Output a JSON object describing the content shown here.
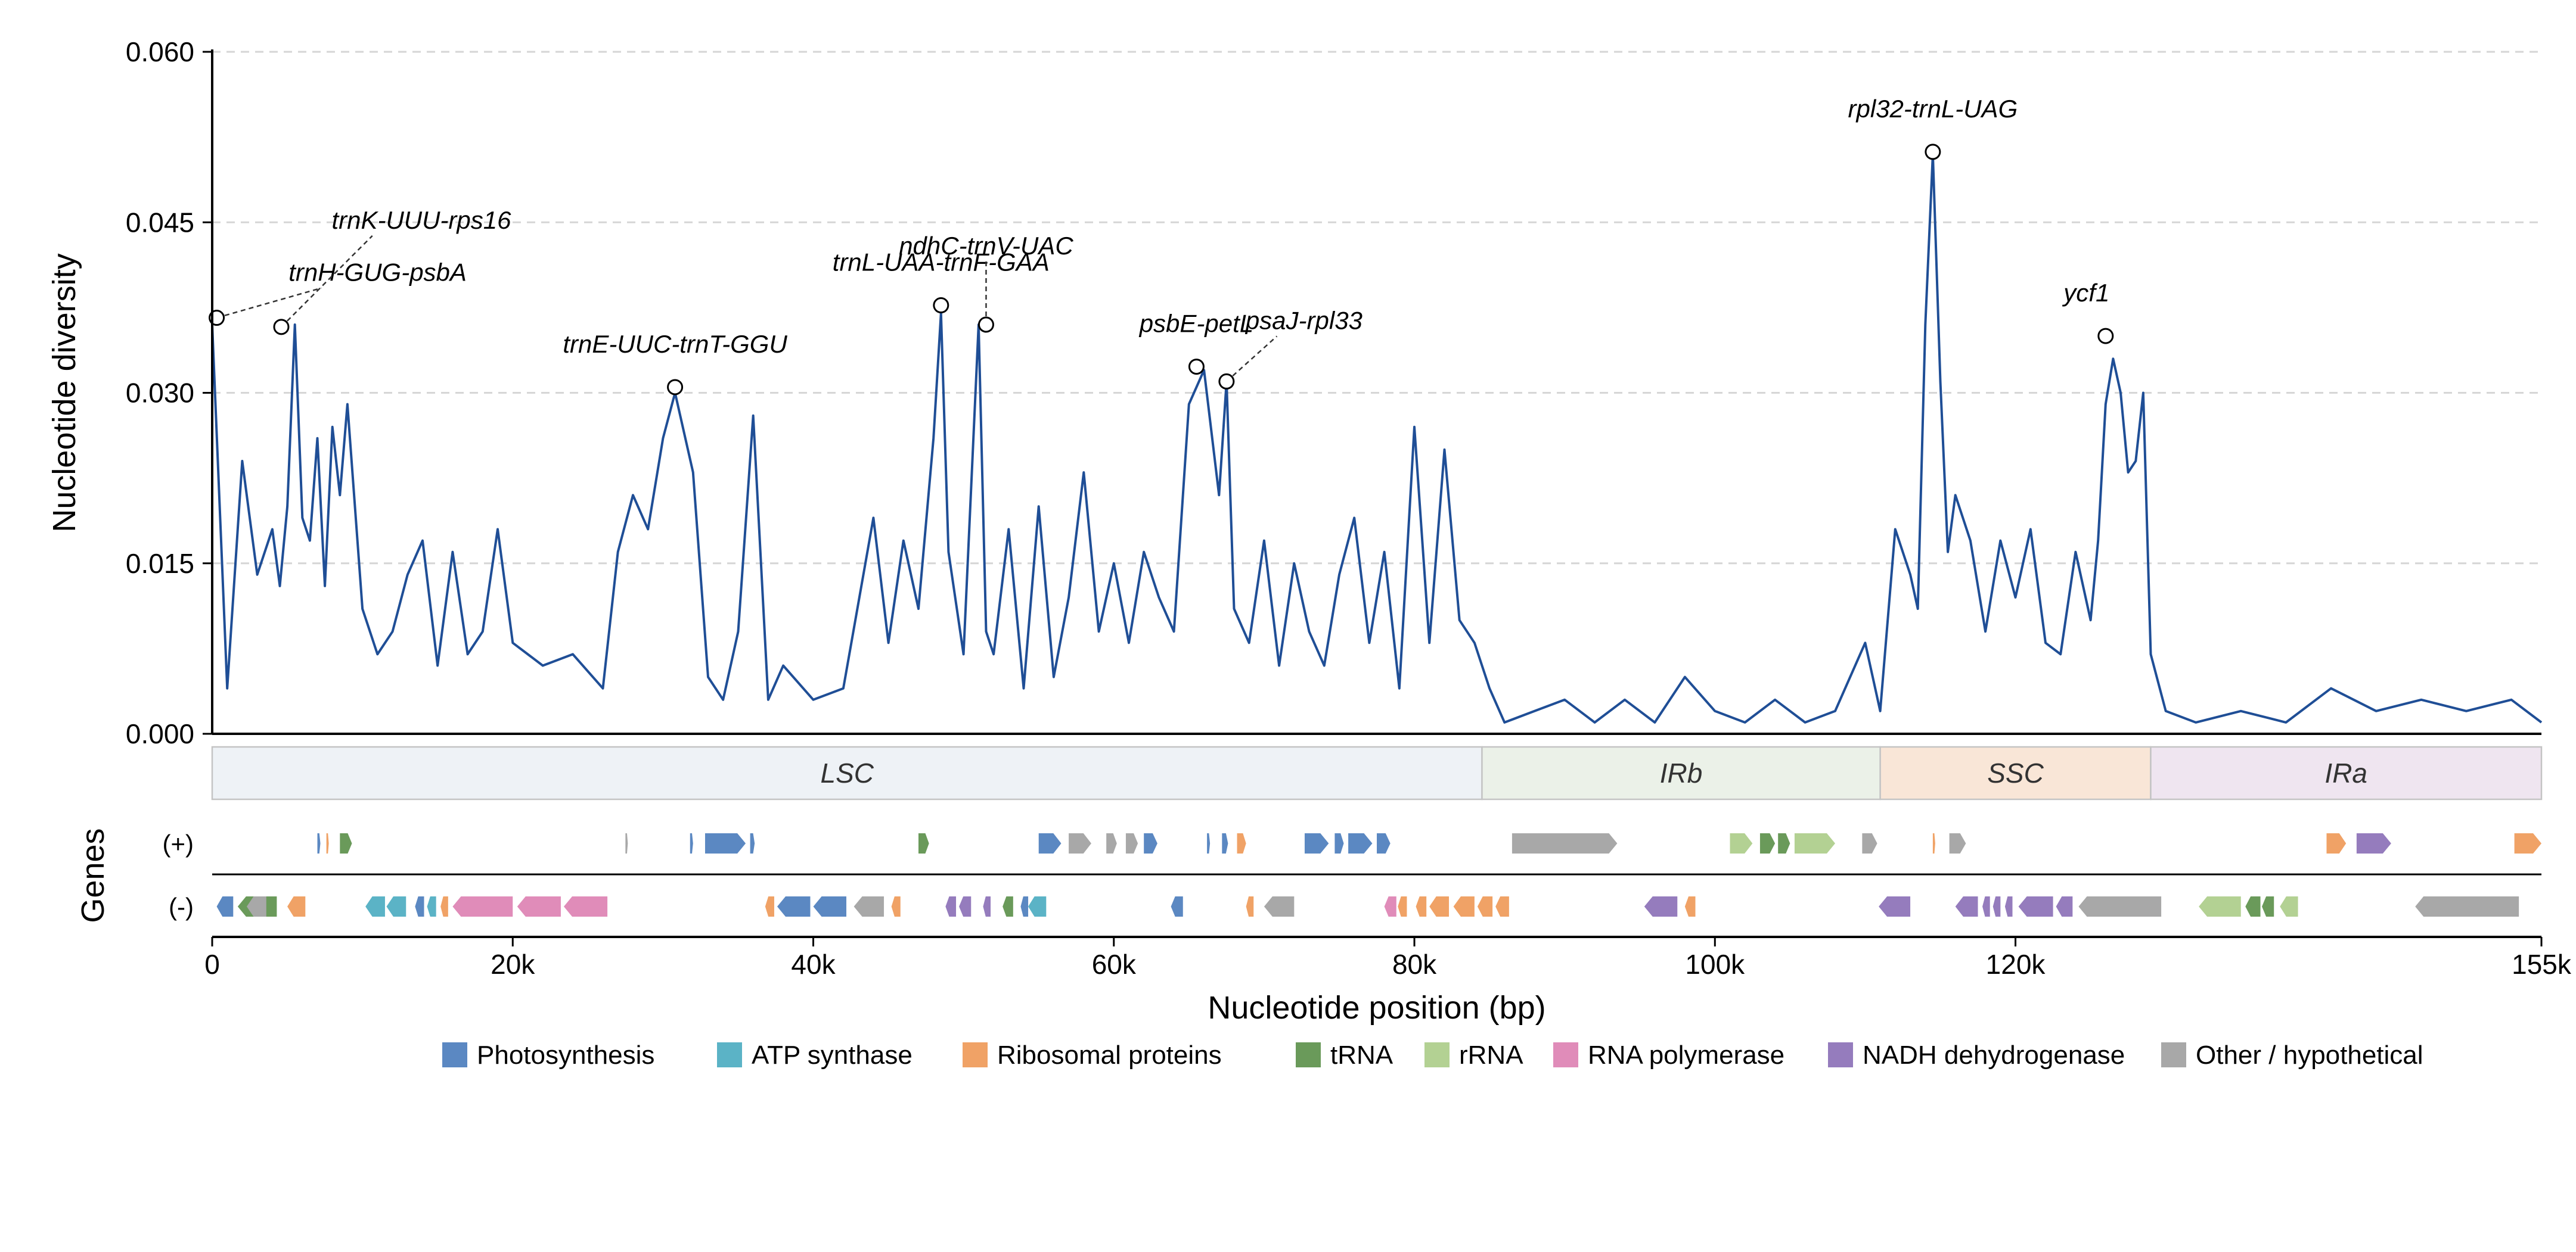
{
  "chart_data": {
    "type": "line",
    "xlabel": "Nucleotide position (bp)",
    "ylabel": "Nucleotide diversity",
    "genes_label": "Genes",
    "xlim": [
      0,
      155000
    ],
    "ylim": [
      0,
      0.06
    ],
    "x_ticks": [
      0,
      20000,
      40000,
      60000,
      80000,
      100000,
      120000,
      155000
    ],
    "x_tick_labels": [
      "0",
      "20k",
      "40k",
      "60k",
      "80k",
      "100k",
      "120k",
      "155k"
    ],
    "y_ticks": [
      0,
      0.015,
      0.03,
      0.045,
      0.06
    ],
    "y_tick_labels": [
      "0.000",
      "0.015",
      "0.030",
      "0.045",
      "0.060"
    ],
    "grid": "horizontal dashed",
    "line_color": "#1f4e96",
    "series": [
      {
        "x": [
          0,
          1000,
          2000,
          3000,
          4000,
          4500,
          5000,
          5500,
          6000,
          6500,
          7000,
          7500,
          8000,
          8500,
          9000,
          10000,
          11000,
          12000,
          13000,
          14000,
          15000,
          16000,
          17000,
          18000,
          19000,
          20000,
          22000,
          24000,
          26000,
          27000,
          28000,
          29000,
          30000,
          30800,
          32000,
          33000,
          34000,
          35000,
          36000,
          37000,
          38000,
          40000,
          42000,
          44000,
          45000,
          46000,
          47000,
          48000,
          48500,
          49000,
          50000,
          51000,
          51500,
          52000,
          53000,
          54000,
          55000,
          56000,
          57000,
          58000,
          59000,
          60000,
          61000,
          62000,
          63000,
          64000,
          65000,
          66000,
          67000,
          67500,
          68000,
          69000,
          70000,
          71000,
          72000,
          73000,
          74000,
          75000,
          76000,
          77000,
          78000,
          79000,
          80000,
          81000,
          82000,
          83000,
          84000,
          85000,
          86000,
          88000,
          90000,
          92000,
          94000,
          96000,
          98000,
          100000,
          102000,
          104000,
          106000,
          108000,
          110000,
          111000,
          112000,
          113000,
          113500,
          114000,
          114500,
          115000,
          115500,
          116000,
          117000,
          118000,
          119000,
          120000,
          121000,
          122000,
          123000,
          124000,
          125000,
          125500,
          126000,
          126500,
          127000,
          127500,
          128000,
          128500,
          129000,
          130000,
          132000,
          135000,
          138000,
          141000,
          144000,
          147000,
          150000,
          153000,
          155000
        ],
        "y": [
          0.036,
          0.004,
          0.024,
          0.014,
          0.018,
          0.013,
          0.02,
          0.036,
          0.019,
          0.017,
          0.026,
          0.013,
          0.027,
          0.021,
          0.029,
          0.011,
          0.007,
          0.009,
          0.014,
          0.017,
          0.006,
          0.016,
          0.007,
          0.009,
          0.018,
          0.008,
          0.006,
          0.007,
          0.004,
          0.016,
          0.021,
          0.018,
          0.026,
          0.03,
          0.023,
          0.005,
          0.003,
          0.009,
          0.028,
          0.003,
          0.006,
          0.003,
          0.004,
          0.019,
          0.008,
          0.017,
          0.011,
          0.026,
          0.037,
          0.016,
          0.007,
          0.036,
          0.009,
          0.007,
          0.018,
          0.004,
          0.02,
          0.005,
          0.012,
          0.023,
          0.009,
          0.015,
          0.008,
          0.016,
          0.012,
          0.009,
          0.029,
          0.032,
          0.021,
          0.031,
          0.011,
          0.008,
          0.017,
          0.006,
          0.015,
          0.009,
          0.006,
          0.014,
          0.019,
          0.008,
          0.016,
          0.004,
          0.027,
          0.008,
          0.025,
          0.01,
          0.008,
          0.004,
          0.001,
          0.002,
          0.003,
          0.001,
          0.003,
          0.001,
          0.005,
          0.002,
          0.001,
          0.003,
          0.001,
          0.002,
          0.008,
          0.002,
          0.018,
          0.014,
          0.011,
          0.036,
          0.051,
          0.031,
          0.016,
          0.021,
          0.017,
          0.009,
          0.017,
          0.012,
          0.018,
          0.008,
          0.007,
          0.016,
          0.01,
          0.017,
          0.029,
          0.033,
          0.03,
          0.023,
          0.024,
          0.03,
          0.007,
          0.002,
          0.001,
          0.002,
          0.001,
          0.004,
          0.002,
          0.003,
          0.002,
          0.003,
          0.001
        ]
      }
    ],
    "annotations": [
      {
        "label": "trnH-GUG-psbA",
        "x": 300,
        "y": 0.0366
      },
      {
        "label": "trnK-UUU-rps16",
        "x": 4600,
        "y": 0.0358
      },
      {
        "label": "trnE-UUC-trnT-GGU",
        "x": 30800,
        "y": 0.0305
      },
      {
        "label": "trnL-UAA-trnF-GAA",
        "x": 48500,
        "y": 0.0377
      },
      {
        "label": "ndhC-trnV-UAC",
        "x": 51500,
        "y": 0.036
      },
      {
        "label": "psbE-petL",
        "x": 65500,
        "y": 0.0323
      },
      {
        "label": "psaJ-rpl33",
        "x": 67500,
        "y": 0.031
      },
      {
        "label": "rpl32-trnL-UAG",
        "x": 114500,
        "y": 0.0512
      },
      {
        "label": "ycf1",
        "x": 126000,
        "y": 0.035
      }
    ],
    "regions": [
      {
        "name": "LSC",
        "start": 0,
        "end": 84500,
        "color": "#eef2f6"
      },
      {
        "name": "IRb",
        "start": 84500,
        "end": 111000,
        "color": "#ebf1e8"
      },
      {
        "name": "SSC",
        "start": 111000,
        "end": 129000,
        "color": "#f9e6d7"
      },
      {
        "name": "IRa",
        "start": 129000,
        "end": 155000,
        "color": "#efe5f0"
      }
    ],
    "strands": [
      "(+)",
      "(-)"
    ],
    "legend": [
      {
        "key": "photo",
        "label": "Photosynthesis",
        "color": "#5b88c2"
      },
      {
        "key": "atp",
        "label": "ATP synthase",
        "color": "#5bb3c6"
      },
      {
        "key": "ribo",
        "label": "Ribosomal proteins",
        "color": "#f0a266"
      },
      {
        "key": "trna",
        "label": "tRNA",
        "color": "#6a9a5a"
      },
      {
        "key": "rrna",
        "label": "rRNA",
        "color": "#b3d193"
      },
      {
        "key": "rnap",
        "label": "RNA polymerase",
        "color": "#e08cb9"
      },
      {
        "key": "ndh",
        "label": "NADH dehydrogenase",
        "color": "#957cbd"
      },
      {
        "key": "other",
        "label": "Other / hypothetical",
        "color": "#a8a8a8"
      }
    ],
    "genes": [
      {
        "strand": "+",
        "start": 7000,
        "end": 7200,
        "cat": "photo"
      },
      {
        "strand": "+",
        "start": 7600,
        "end": 7750,
        "cat": "ribo"
      },
      {
        "strand": "+",
        "start": 8500,
        "end": 9300,
        "cat": "trna"
      },
      {
        "strand": "+",
        "start": 27500,
        "end": 27650,
        "cat": "other"
      },
      {
        "strand": "+",
        "start": 31800,
        "end": 32000,
        "cat": "photo"
      },
      {
        "strand": "+",
        "start": 32800,
        "end": 35500,
        "cat": "photo"
      },
      {
        "strand": "+",
        "start": 35800,
        "end": 36100,
        "cat": "photo"
      },
      {
        "strand": "+",
        "start": 47000,
        "end": 47700,
        "cat": "trna"
      },
      {
        "strand": "+",
        "start": 55000,
        "end": 56500,
        "cat": "photo"
      },
      {
        "strand": "+",
        "start": 57000,
        "end": 58500,
        "cat": "other"
      },
      {
        "strand": "+",
        "start": 59500,
        "end": 60200,
        "cat": "other"
      },
      {
        "strand": "+",
        "start": 60800,
        "end": 61600,
        "cat": "other"
      },
      {
        "strand": "+",
        "start": 62000,
        "end": 62900,
        "cat": "photo"
      },
      {
        "strand": "+",
        "start": 66200,
        "end": 66400,
        "cat": "photo"
      },
      {
        "strand": "+",
        "start": 67200,
        "end": 67600,
        "cat": "photo"
      },
      {
        "strand": "+",
        "start": 68200,
        "end": 68800,
        "cat": "ribo"
      },
      {
        "strand": "+",
        "start": 72700,
        "end": 74300,
        "cat": "photo"
      },
      {
        "strand": "+",
        "start": 74700,
        "end": 75300,
        "cat": "photo"
      },
      {
        "strand": "+",
        "start": 75600,
        "end": 77200,
        "cat": "photo"
      },
      {
        "strand": "+",
        "start": 77500,
        "end": 78400,
        "cat": "photo"
      },
      {
        "strand": "+",
        "start": 86500,
        "end": 93500,
        "cat": "other"
      },
      {
        "strand": "+",
        "start": 101000,
        "end": 102500,
        "cat": "rrna"
      },
      {
        "strand": "+",
        "start": 103000,
        "end": 104000,
        "cat": "trna"
      },
      {
        "strand": "+",
        "start": 104200,
        "end": 105000,
        "cat": "trna"
      },
      {
        "strand": "+",
        "start": 105300,
        "end": 108000,
        "cat": "rrna"
      },
      {
        "strand": "+",
        "start": 109800,
        "end": 110800,
        "cat": "other"
      },
      {
        "strand": "+",
        "start": 114500,
        "end": 114650,
        "cat": "ribo"
      },
      {
        "strand": "+",
        "start": 115600,
        "end": 116700,
        "cat": "other"
      },
      {
        "strand": "+",
        "start": 140700,
        "end": 142000,
        "cat": "ribo"
      },
      {
        "strand": "+",
        "start": 142700,
        "end": 145000,
        "cat": "ndh"
      },
      {
        "strand": "+",
        "start": 153200,
        "end": 155000,
        "cat": "ribo"
      },
      {
        "strand": "-",
        "start": 300,
        "end": 1400,
        "cat": "photo"
      },
      {
        "strand": "-",
        "start": 1700,
        "end": 4300,
        "cat": "trna"
      },
      {
        "strand": "-",
        "start": 2300,
        "end": 3600,
        "cat": "other"
      },
      {
        "strand": "-",
        "start": 5000,
        "end": 6200,
        "cat": "ribo"
      },
      {
        "strand": "-",
        "start": 10200,
        "end": 11500,
        "cat": "atp"
      },
      {
        "strand": "-",
        "start": 11600,
        "end": 12900,
        "cat": "atp"
      },
      {
        "strand": "-",
        "start": 13500,
        "end": 14100,
        "cat": "photo"
      },
      {
        "strand": "-",
        "start": 14300,
        "end": 14900,
        "cat": "atp"
      },
      {
        "strand": "-",
        "start": 15200,
        "end": 15700,
        "cat": "ribo"
      },
      {
        "strand": "-",
        "start": 16000,
        "end": 20000,
        "cat": "rnap"
      },
      {
        "strand": "-",
        "start": 20300,
        "end": 23200,
        "cat": "rnap"
      },
      {
        "strand": "-",
        "start": 23400,
        "end": 26300,
        "cat": "rnap"
      },
      {
        "strand": "-",
        "start": 36800,
        "end": 37400,
        "cat": "ribo"
      },
      {
        "strand": "-",
        "start": 37600,
        "end": 39800,
        "cat": "photo"
      },
      {
        "strand": "-",
        "start": 40000,
        "end": 42200,
        "cat": "photo"
      },
      {
        "strand": "-",
        "start": 42700,
        "end": 44700,
        "cat": "other"
      },
      {
        "strand": "-",
        "start": 45200,
        "end": 45800,
        "cat": "ribo"
      },
      {
        "strand": "-",
        "start": 48800,
        "end": 49500,
        "cat": "ndh"
      },
      {
        "strand": "-",
        "start": 49700,
        "end": 50500,
        "cat": "ndh"
      },
      {
        "strand": "-",
        "start": 51300,
        "end": 51800,
        "cat": "ndh"
      },
      {
        "strand": "-",
        "start": 52600,
        "end": 53300,
        "cat": "trna"
      },
      {
        "strand": "-",
        "start": 53800,
        "end": 54300,
        "cat": "photo"
      },
      {
        "strand": "-",
        "start": 54300,
        "end": 55500,
        "cat": "atp"
      },
      {
        "strand": "-",
        "start": 63800,
        "end": 64600,
        "cat": "photo"
      },
      {
        "strand": "-",
        "start": 68800,
        "end": 69300,
        "cat": "ribo"
      },
      {
        "strand": "-",
        "start": 70000,
        "end": 72000,
        "cat": "other"
      },
      {
        "strand": "-",
        "start": 78000,
        "end": 78800,
        "cat": "rnap"
      },
      {
        "strand": "-",
        "start": 78900,
        "end": 79500,
        "cat": "ribo"
      },
      {
        "strand": "-",
        "start": 80100,
        "end": 80800,
        "cat": "ribo"
      },
      {
        "strand": "-",
        "start": 81000,
        "end": 82300,
        "cat": "ribo"
      },
      {
        "strand": "-",
        "start": 82600,
        "end": 84000,
        "cat": "ribo"
      },
      {
        "strand": "-",
        "start": 84200,
        "end": 85200,
        "cat": "ribo"
      },
      {
        "strand": "-",
        "start": 85400,
        "end": 86300,
        "cat": "ribo"
      },
      {
        "strand": "-",
        "start": 95300,
        "end": 97500,
        "cat": "ndh"
      },
      {
        "strand": "-",
        "start": 98000,
        "end": 98700,
        "cat": "ribo"
      },
      {
        "strand": "-",
        "start": 110900,
        "end": 113000,
        "cat": "ndh"
      },
      {
        "strand": "-",
        "start": 116000,
        "end": 117500,
        "cat": "ndh"
      },
      {
        "strand": "-",
        "start": 117800,
        "end": 118300,
        "cat": "ndh"
      },
      {
        "strand": "-",
        "start": 118500,
        "end": 119000,
        "cat": "ndh"
      },
      {
        "strand": "-",
        "start": 119300,
        "end": 119800,
        "cat": "ndh"
      },
      {
        "strand": "-",
        "start": 120200,
        "end": 122500,
        "cat": "ndh"
      },
      {
        "strand": "-",
        "start": 122700,
        "end": 123800,
        "cat": "ndh"
      },
      {
        "strand": "-",
        "start": 124200,
        "end": 129700,
        "cat": "other"
      },
      {
        "strand": "-",
        "start": 132200,
        "end": 135000,
        "cat": "rrna"
      },
      {
        "strand": "-",
        "start": 135300,
        "end": 136300,
        "cat": "trna"
      },
      {
        "strand": "-",
        "start": 136400,
        "end": 137200,
        "cat": "trna"
      },
      {
        "strand": "-",
        "start": 137600,
        "end": 138800,
        "cat": "rrna"
      },
      {
        "strand": "-",
        "start": 146600,
        "end": 153500,
        "cat": "other"
      }
    ]
  }
}
